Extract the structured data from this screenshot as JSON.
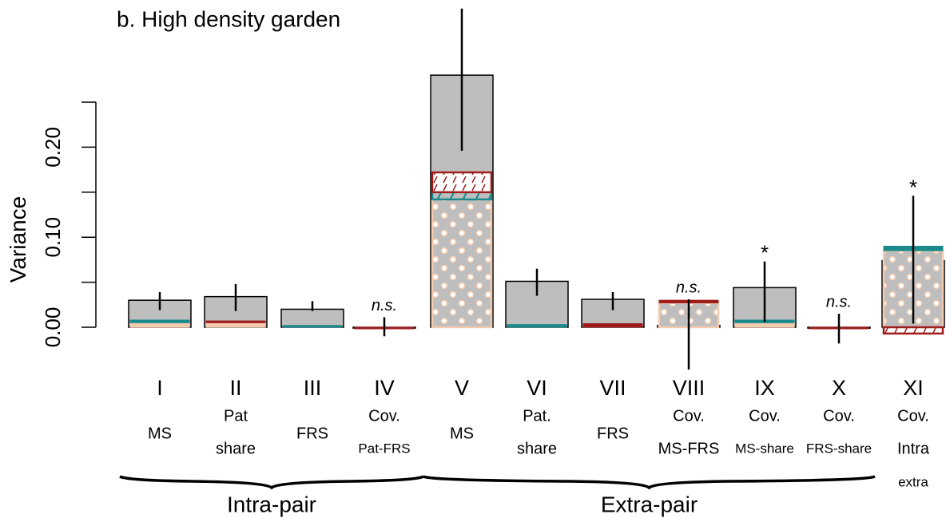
{
  "chart_data": {
    "type": "bar",
    "title": "b. High density garden",
    "y_label": "Variance",
    "categories": [
      "I",
      "II",
      "III",
      "IV",
      "V",
      "VI",
      "VII",
      "VIII",
      "IX",
      "X",
      "XI"
    ],
    "sublabels": [
      [
        "MS"
      ],
      [
        "Pat",
        "share"
      ],
      [
        "FRS"
      ],
      [
        "Cov.",
        "Pat-FRS"
      ],
      [
        "MS"
      ],
      [
        "Pat.",
        "share"
      ],
      [
        "FRS"
      ],
      [
        "Cov.",
        "MS-FRS"
      ],
      [
        "Cov.",
        "MS-share"
      ],
      [
        "Cov.",
        "FRS-share"
      ],
      [
        "Cov.",
        "Intra",
        "extra"
      ]
    ],
    "values": [
      0.03,
      0.034,
      0.02,
      -0.001,
      0.28,
      0.051,
      0.031,
      0.002,
      0.044,
      -0.001,
      0.074
    ],
    "color": "#bebebe",
    "error_high": [
      0.039,
      0.048,
      0.029,
      0.011,
      0.354,
      0.065,
      0.039,
      0.031,
      0.073,
      0.015,
      0.146
    ],
    "error_low": [
      0.019,
      0.018,
      0.018,
      -0.01,
      0.196,
      0.035,
      0.019,
      -0.047,
      0.006,
      -0.018,
      0.004
    ],
    "segments": [
      {
        "color": "#f5cbb0",
        "pattern": "dots",
        "values": [
          0.005,
          0.005,
          0,
          0,
          0.142,
          0,
          0,
          0.027,
          0.005,
          0,
          0.085
        ]
      },
      {
        "color": "#1a8a8a",
        "pattern": "hatch",
        "values": [
          0.003,
          0,
          0.002,
          0,
          0.008,
          0.003,
          0,
          0,
          0.003,
          0,
          0.005
        ]
      },
      {
        "color": "#a01c1c",
        "pattern": "hatch",
        "values": [
          0,
          0.002,
          0,
          -0.001,
          0.022,
          0,
          0.004,
          0.003,
          0,
          -0.001,
          -0.007
        ]
      }
    ],
    "markers": [
      null,
      null,
      null,
      "n.s.",
      null,
      null,
      null,
      "n.s.",
      "*",
      "n.s.",
      "*"
    ],
    "groups": [
      {
        "label": "Intra-pair",
        "span": [
          0,
          3
        ]
      },
      {
        "label": "Extra-pair",
        "span": [
          4,
          10
        ]
      }
    ],
    "ylim": [
      0,
      0.25
    ],
    "yticks": [
      {
        "value": 0,
        "label": "0.00"
      },
      {
        "value": 0.1,
        "label": "0.10"
      },
      {
        "value": 0.2,
        "label": "0.20"
      }
    ],
    "yminor_ticks": [
      0.05,
      0.15,
      0.25
    ]
  }
}
